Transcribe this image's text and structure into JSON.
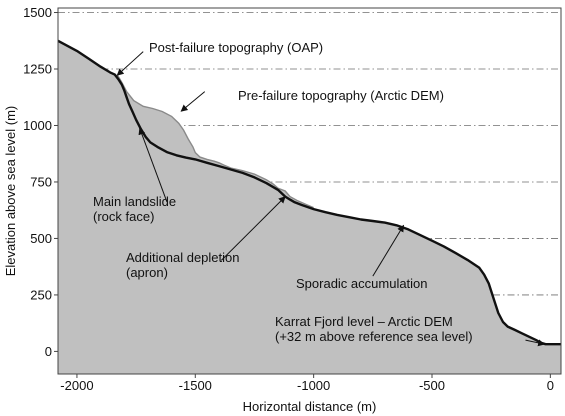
{
  "chart_data": {
    "type": "area",
    "title": "",
    "xlabel": "Horizontal distance (m)",
    "ylabel": "Elevation above sea level (m)",
    "xlim": [
      -2080,
      45
    ],
    "ylim": [
      -100,
      1520
    ],
    "xticks": [
      -2000,
      -1500,
      -1000,
      -500,
      0
    ],
    "yticks": [
      0,
      250,
      500,
      750,
      1000,
      1250,
      1500
    ],
    "grid": "horizontal dash-dot at y ticks",
    "colors": {
      "fill": "#c0c0c0",
      "post": "#111111",
      "pre": "#8a8a8a",
      "grid": "#6f6f6f"
    },
    "series": [
      {
        "name": "Post-failure topography (OAP)",
        "x": [
          -2080,
          -2000,
          -1950,
          -1900,
          -1860,
          -1840,
          -1825,
          -1810,
          -1800,
          -1790,
          -1780,
          -1765,
          -1750,
          -1730,
          -1710,
          -1690,
          -1660,
          -1620,
          -1580,
          -1540,
          -1500,
          -1450,
          -1400,
          -1350,
          -1300,
          -1250,
          -1200,
          -1150,
          -1120,
          -1100,
          -1080,
          -1050,
          -1000,
          -950,
          -900,
          -850,
          -800,
          -750,
          -700,
          -650,
          -600,
          -550,
          -500,
          -450,
          -400,
          -350,
          -300,
          -280,
          -260,
          -240,
          -220,
          -200,
          -180,
          -150,
          -120,
          -90,
          -60,
          -40,
          -20,
          0,
          45
        ],
        "y": [
          1375,
          1330,
          1295,
          1260,
          1235,
          1225,
          1205,
          1180,
          1155,
          1125,
          1095,
          1060,
          1025,
          985,
          950,
          925,
          905,
          882,
          868,
          858,
          850,
          835,
          820,
          805,
          790,
          770,
          745,
          715,
          685,
          672,
          660,
          648,
          630,
          616,
          604,
          594,
          584,
          577,
          570,
          558,
          540,
          515,
          490,
          465,
          435,
          405,
          370,
          340,
          300,
          235,
          170,
          130,
          110,
          95,
          80,
          65,
          50,
          38,
          32,
          32,
          32
        ]
      },
      {
        "name": "Pre-failure topography (Arctic DEM)",
        "x": [
          -1830,
          -1810,
          -1790,
          -1760,
          -1720,
          -1680,
          -1640,
          -1600,
          -1570,
          -1550,
          -1530,
          -1510,
          -1500,
          -1480,
          -1450,
          -1420,
          -1400,
          -1380,
          -1350,
          -1300,
          -1250,
          -1200,
          -1170,
          -1150,
          -1120,
          -1100,
          -1070,
          -1030,
          -1000
        ],
        "y": [
          1225,
          1190,
          1150,
          1110,
          1085,
          1075,
          1062,
          1040,
          1010,
          980,
          940,
          905,
          880,
          860,
          850,
          842,
          835,
          825,
          812,
          800,
          785,
          760,
          740,
          722,
          710,
          685,
          668,
          650,
          636
        ]
      }
    ],
    "annotations": [
      {
        "text": "Post-failure topography (OAP)",
        "lines": [
          "Post-failure topography (OAP)"
        ],
        "arrow_from": [
          -1720,
          1327
        ],
        "arrow_to": [
          -1830,
          1222
        ]
      },
      {
        "text": "Pre-failure topography (Arctic DEM)",
        "lines": [
          "Pre-failure topography (Arctic DEM)"
        ],
        "arrow_from": [
          -1460,
          1150
        ],
        "arrow_to": [
          -1560,
          1063
        ]
      },
      {
        "text": "Main landslide (rock face)",
        "lines": [
          "Main landslide",
          "(rock face)"
        ],
        "arrow_from": [
          -1620,
          662
        ],
        "arrow_to": [
          -1735,
          988
        ]
      },
      {
        "text": "Additional depletion (apron)",
        "lines": [
          "Additional depletion",
          "(apron)"
        ],
        "arrow_from": [
          -1390,
          403
        ],
        "arrow_to": [
          -1120,
          685
        ]
      },
      {
        "text": "Sporadic accumulation",
        "lines": [
          "Sporadic accumulation"
        ],
        "arrow_from": [
          -750,
          333
        ],
        "arrow_to": [
          -620,
          558
        ]
      },
      {
        "text": "Karrat Fjord level – Arctic DEM (+32 m above reference sea level)",
        "lines": [
          "Karrat Fjord level – Arctic DEM",
          "(+32 m above reference sea level)"
        ],
        "arrow_from": [
          -105,
          50
        ],
        "arrow_to": [
          -25,
          32
        ]
      }
    ]
  }
}
